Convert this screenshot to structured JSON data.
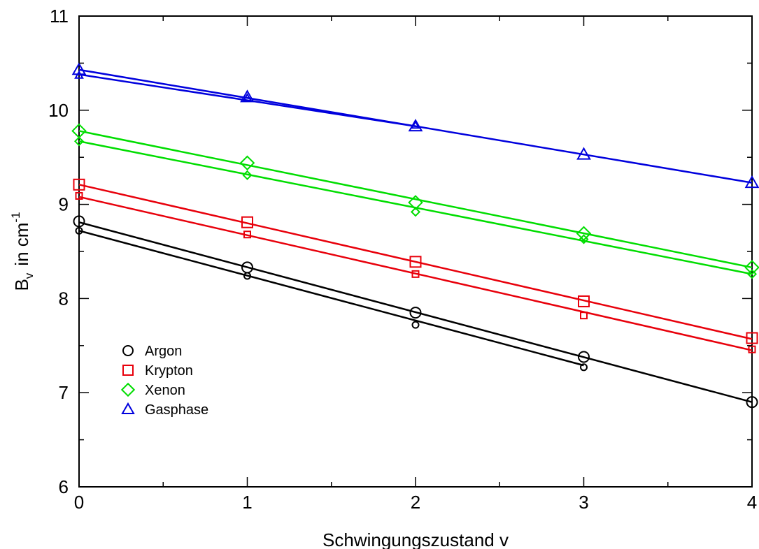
{
  "chart_data": {
    "type": "scatter",
    "xlabel": "Schwingungszustand   v",
    "ylabel": {
      "main": "B",
      "sub": "v",
      "unit": "in cm",
      "sup": "-1"
    },
    "xlim": [
      0,
      4
    ],
    "ylim": [
      6,
      11
    ],
    "x_ticks": [
      "0",
      "1",
      "2",
      "3",
      "4"
    ],
    "y_ticks": [
      "6",
      "7",
      "8",
      "9",
      "10",
      "11"
    ],
    "grid": false,
    "legend_position": "bottom-left",
    "legend": [
      "Argon",
      "Krypton",
      "Xenon",
      "Gasphase"
    ],
    "series": [
      {
        "name": "Argon",
        "color": "#000000",
        "marker": "circle",
        "large": {
          "x": [
            0,
            1,
            2,
            3,
            4
          ],
          "y": [
            8.82,
            8.33,
            7.85,
            7.38,
            6.9
          ]
        },
        "small": {
          "x": [
            0,
            1,
            2,
            3
          ],
          "y": [
            8.72,
            8.24,
            7.72,
            7.27
          ]
        },
        "fit_large": {
          "x": [
            0,
            4
          ],
          "y": [
            8.81,
            6.9
          ]
        },
        "fit_small": {
          "x": [
            0,
            3
          ],
          "y": [
            8.72,
            7.29
          ]
        }
      },
      {
        "name": "Krypton",
        "color": "#e8000b",
        "marker": "square",
        "large": {
          "x": [
            0,
            1,
            2,
            3,
            4
          ],
          "y": [
            9.21,
            8.81,
            8.39,
            7.97,
            7.58
          ]
        },
        "small": {
          "x": [
            0,
            1,
            2,
            3,
            4
          ],
          "y": [
            9.09,
            8.68,
            8.26,
            7.82,
            7.46
          ]
        },
        "fit_large": {
          "x": [
            0,
            4
          ],
          "y": [
            9.21,
            7.57
          ]
        },
        "fit_small": {
          "x": [
            0,
            4
          ],
          "y": [
            9.08,
            7.45
          ]
        }
      },
      {
        "name": "Xenon",
        "color": "#00dd00",
        "marker": "diamond",
        "large": {
          "x": [
            0,
            1,
            2,
            3,
            4
          ],
          "y": [
            9.78,
            9.44,
            9.02,
            8.69,
            8.33
          ]
        },
        "small": {
          "x": [
            0,
            1,
            2,
            3,
            4
          ],
          "y": [
            9.67,
            9.31,
            8.92,
            8.63,
            8.26
          ]
        },
        "fit_large": {
          "x": [
            0,
            4
          ],
          "y": [
            9.78,
            8.33
          ]
        },
        "fit_small": {
          "x": [
            0,
            4
          ],
          "y": [
            9.67,
            8.26
          ]
        }
      },
      {
        "name": "Gasphase",
        "color": "#0000dd",
        "marker": "triangle",
        "large": {
          "x": [
            0,
            1,
            2,
            3,
            4
          ],
          "y": [
            10.43,
            10.14,
            9.83,
            9.53,
            9.23
          ]
        },
        "small": {
          "x": [
            0,
            1,
            2
          ],
          "y": [
            10.37,
            10.13,
            9.84
          ]
        },
        "fit_large": {
          "x": [
            0,
            4
          ],
          "y": [
            10.43,
            9.23
          ]
        },
        "fit_small": {
          "x": [
            0,
            2
          ],
          "y": [
            10.38,
            9.83
          ]
        }
      }
    ]
  }
}
